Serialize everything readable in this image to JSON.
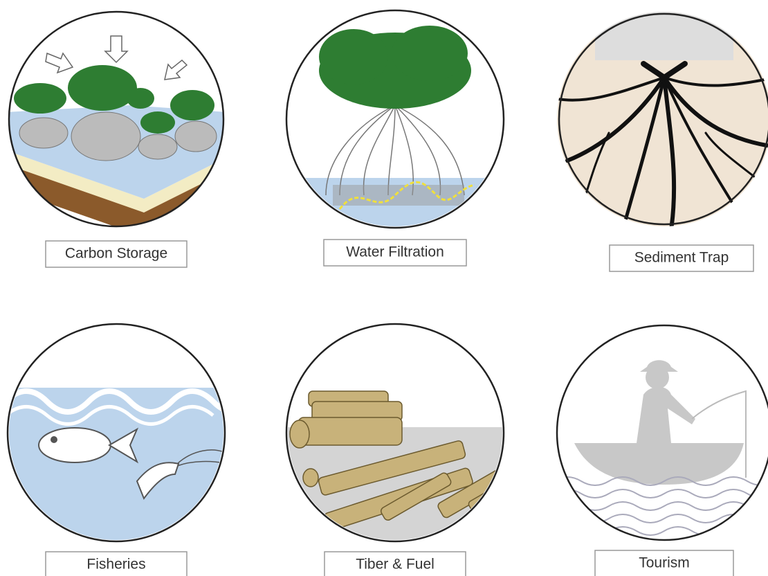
{
  "panels": [
    {
      "label": "Carbon Storage"
    },
    {
      "label": "Water Filtration"
    },
    {
      "label": "Sediment Trap"
    },
    {
      "label": "Fisheries"
    },
    {
      "label": "Tiber & Fuel"
    },
    {
      "label": "Tourism"
    }
  ]
}
